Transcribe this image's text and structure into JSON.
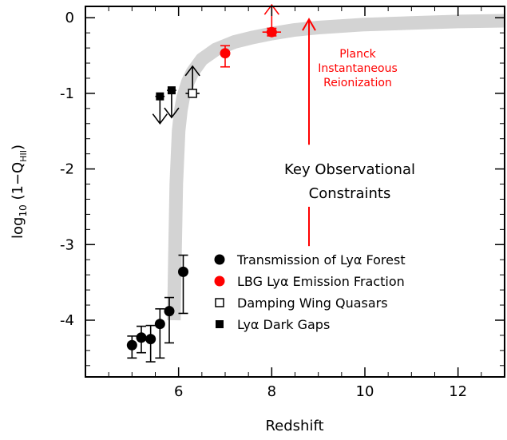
{
  "chart_data": {
    "type": "scatter",
    "xlabel": "Redshift",
    "ylabel_main": "log",
    "ylabel_sub": "10",
    "ylabel_rest": " (1−Q",
    "ylabel_qsub": "HII",
    "ylabel_close": ")",
    "xlim": [
      4.0,
      13.0
    ],
    "ylim": [
      -4.75,
      0.15
    ],
    "xticks": [
      {
        "value": 6,
        "label": "6"
      },
      {
        "value": 8,
        "label": "8"
      },
      {
        "value": 10,
        "label": "10"
      },
      {
        "value": 12,
        "label": "12"
      }
    ],
    "yticks": [
      {
        "value": 0,
        "label": "0"
      },
      {
        "value": -1,
        "label": "-1"
      },
      {
        "value": -2,
        "label": "-2"
      },
      {
        "value": -3,
        "label": "-3"
      },
      {
        "value": -4,
        "label": "-4"
      }
    ],
    "xminor_step": 0.5,
    "yminor_step": 0.2,
    "grid": false,
    "band": {
      "color": "#d3d3d3",
      "x": [
        5.9,
        5.92,
        5.95,
        6.0,
        6.05,
        6.1,
        6.2,
        6.3,
        6.5,
        6.8,
        7.2,
        7.6,
        8.0,
        8.5,
        9.0,
        10.0,
        11.0,
        12.0,
        13.0
      ],
      "y": [
        -4.0,
        -3.2,
        -2.2,
        -1.5,
        -1.22,
        -1.05,
        -0.85,
        -0.72,
        -0.55,
        -0.42,
        -0.32,
        -0.26,
        -0.21,
        -0.16,
        -0.13,
        -0.09,
        -0.07,
        -0.05,
        -0.04
      ]
    },
    "series": [
      {
        "name": "Transmission of Lyα Forest",
        "marker": "filled-circle",
        "color": "#000000",
        "points": [
          {
            "x": 5.0,
            "y": -4.33,
            "err_low": 0.17,
            "err_high": 0.12
          },
          {
            "x": 5.2,
            "y": -4.23,
            "err_low": 0.2,
            "err_high": 0.15
          },
          {
            "x": 5.4,
            "y": -4.25,
            "err_low": 0.3,
            "err_high": 0.18
          },
          {
            "x": 5.6,
            "y": -4.05,
            "err_low": 0.45,
            "err_high": 0.2
          },
          {
            "x": 5.8,
            "y": -3.88,
            "err_low": 0.42,
            "err_high": 0.18
          },
          {
            "x": 6.1,
            "y": -3.36,
            "err_low": 0.55,
            "err_high": 0.22
          }
        ]
      },
      {
        "name": "LBG Lyα Emission Fraction",
        "marker": "filled-circle",
        "color": "#ff0000",
        "points": [
          {
            "x": 7.0,
            "y": -0.47,
            "err_low": 0.18,
            "err_high": 0.1
          },
          {
            "x": 8.0,
            "y": -0.19,
            "err_low": 0.05,
            "err_high": 0.05,
            "xerr": 0.2,
            "upper_arrow": true
          }
        ]
      },
      {
        "name": "Damping Wing Quasars",
        "marker": "open-square",
        "color": "#000000",
        "points": [
          {
            "x": 6.3,
            "y": -1.0,
            "xerr": 0.15,
            "upper_arrow": true
          }
        ]
      },
      {
        "name": "Lyα Dark Gaps",
        "marker": "filled-square",
        "color": "#000000",
        "points": [
          {
            "x": 5.6,
            "y": -1.04,
            "xerr": 0.1,
            "lower_arrow": true
          },
          {
            "x": 5.85,
            "y": -0.96,
            "xerr": 0.1,
            "lower_arrow": true
          }
        ]
      }
    ],
    "annotations": {
      "planck_lines": [
        "Planck",
        "Instantaneous",
        "Reionization"
      ],
      "planck_color": "#ff0000",
      "planck_x": 8.8,
      "planck_arrow_top": -0.02,
      "planck_arrow_bottom": -1.68,
      "planck_stem_top": -2.5,
      "planck_stem_bottom": -3.02,
      "key_lines": [
        "Key Observational",
        "Constraints"
      ]
    },
    "legend": {
      "position": "lower-right",
      "entries": [
        {
          "marker": "filled-circle",
          "color": "#000000",
          "label": "Transmission of Lyα Forest"
        },
        {
          "marker": "filled-circle",
          "color": "#ff0000",
          "label": "LBG Lyα Emission Fraction"
        },
        {
          "marker": "open-square",
          "color": "#000000",
          "label": "Damping Wing Quasars"
        },
        {
          "marker": "filled-square",
          "color": "#000000",
          "label": "Lyα Dark Gaps"
        }
      ]
    }
  }
}
